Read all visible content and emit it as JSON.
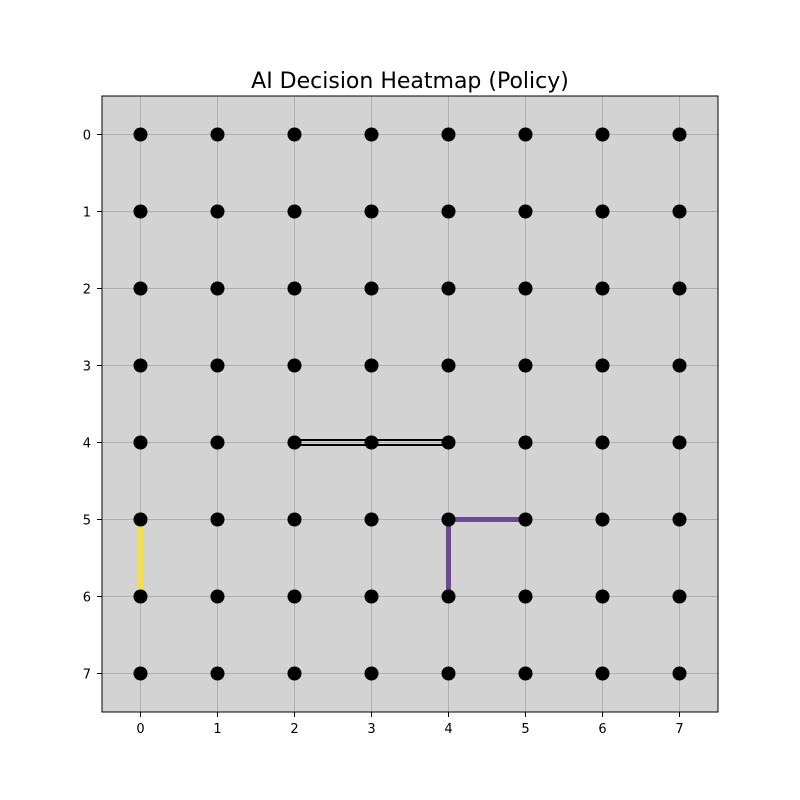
{
  "chart_data": {
    "type": "scatter",
    "title": "AI Decision Heatmap (Policy)",
    "xlabel": "",
    "ylabel": "",
    "xlim": [
      -0.5,
      7.5
    ],
    "ylim": [
      7.5,
      -0.5
    ],
    "y_inverted": true,
    "grid": true,
    "x_ticks": [
      0,
      1,
      2,
      3,
      4,
      5,
      6,
      7
    ],
    "y_ticks": [
      0,
      1,
      2,
      3,
      4,
      5,
      6,
      7
    ],
    "background_color": "#d3d3d3",
    "grid_color": "#b0b0b0",
    "node_color": "#000000",
    "nodes": {
      "rows": 8,
      "cols": 8
    },
    "edges": [
      {
        "from": [
          2,
          4
        ],
        "to": [
          4,
          4
        ],
        "color": "#000000",
        "style": "double"
      },
      {
        "from": [
          4,
          5
        ],
        "to": [
          5,
          5
        ],
        "color": "#6a4c8c",
        "style": "solid"
      },
      {
        "from": [
          4,
          5
        ],
        "to": [
          4,
          6
        ],
        "color": "#6a4c8c",
        "style": "solid"
      },
      {
        "from": [
          0,
          5
        ],
        "to": [
          0,
          6
        ],
        "color": "#f4e04d",
        "style": "solid"
      }
    ]
  }
}
